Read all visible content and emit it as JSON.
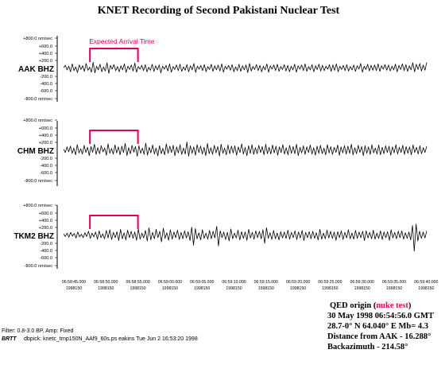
{
  "chart_data": {
    "type": "line",
    "title": "KNET Recording of Second Pakistani Nuclear Test",
    "annotation": "Expected Arrival Time",
    "y_ticks": [
      "+800.0 nm/sec",
      "+600.0",
      "+400.0",
      "+200.0",
      "0",
      "-200.0",
      "-400.0",
      "-600.0",
      "-800.0 nm/sec"
    ],
    "y_units": "nm/sec",
    "ylim": [
      -800,
      800
    ],
    "x_ticks": [
      {
        "time": "06:58:45.000",
        "date": "1998150"
      },
      {
        "time": "06:58:50.000",
        "date": "1998150"
      },
      {
        "time": "06:58:55.000",
        "date": "1998150"
      },
      {
        "time": "06:59:00.000",
        "date": "1998150"
      },
      {
        "time": "06:59:05.000",
        "date": "1998150"
      },
      {
        "time": "06:59:10.000",
        "date": "1998150"
      },
      {
        "time": "06:59:15.000",
        "date": "1998150"
      },
      {
        "time": "06:59:20.000",
        "date": "1998150"
      },
      {
        "time": "06:59:25.000",
        "date": "1998150"
      },
      {
        "time": "06:59:30.000",
        "date": "1998150"
      },
      {
        "time": "06:59:35.000",
        "date": "1998150"
      },
      {
        "time": "06:59:40.000",
        "date": "1998150"
      }
    ],
    "expected_arrival_window": [
      "06:58:47.5",
      "06:58:55.0"
    ],
    "series": [
      {
        "name": "AAK BHZ",
        "values": [
          20,
          80,
          -40,
          60,
          -90,
          120,
          -60,
          40,
          -110,
          90,
          -30,
          70,
          -80,
          130,
          -50,
          30,
          -100,
          160,
          -120,
          60,
          -40,
          110,
          -90,
          40,
          -70,
          150,
          -130,
          80,
          -20,
          100,
          -60,
          50,
          -90,
          70,
          -40,
          120,
          -110,
          60,
          -30,
          90,
          -70,
          140,
          -100,
          50,
          -20,
          80,
          -60,
          100,
          -90,
          30,
          -50,
          110,
          -80,
          70,
          -40,
          90,
          -120,
          60,
          -20,
          80,
          -70,
          120,
          -100,
          50,
          -30,
          90,
          -60,
          110,
          -80,
          40,
          -50,
          100,
          -90,
          70,
          -40,
          130,
          -110,
          60,
          -20,
          80,
          -60,
          100,
          -90,
          50,
          -30,
          110,
          -80,
          70,
          -40,
          90,
          -70,
          120,
          -100,
          60,
          -20,
          80,
          -50,
          100,
          -90,
          40,
          -60,
          110,
          -80,
          70,
          -40,
          90,
          -110,
          130,
          -70,
          50,
          -30,
          100,
          -60,
          80,
          -90,
          60,
          -40,
          120,
          -100,
          70,
          -20,
          90,
          -60,
          110,
          -80,
          50,
          -30,
          100,
          -70,
          80,
          -90,
          60,
          -40,
          110,
          -100,
          70,
          -20,
          90,
          -60,
          120,
          -80,
          50,
          -40,
          100,
          -90,
          70,
          -30,
          110,
          -70,
          80,
          -60,
          60,
          -20,
          100,
          -80,
          90,
          -50,
          120,
          -90,
          60,
          -30,
          80,
          -60,
          100,
          -70,
          50,
          -40,
          90,
          -80,
          70,
          -20,
          130,
          -100,
          60,
          -30,
          110,
          -70,
          80,
          -50,
          90,
          -60,
          120,
          -80,
          70,
          -20,
          100,
          -50,
          90,
          -70,
          60,
          -40,
          110,
          -90,
          80,
          -30,
          120,
          -60,
          100,
          -80,
          70,
          -40,
          150,
          -90,
          110,
          -30,
          130,
          -70,
          90,
          -50,
          160
        ]
      },
      {
        "name": "CHM BHZ",
        "values": [
          30,
          -60,
          90,
          -40,
          110,
          -80,
          60,
          -120,
          150,
          -70,
          40,
          -100,
          130,
          -60,
          80,
          -140,
          100,
          -50,
          160,
          -110,
          70,
          -90,
          120,
          -40,
          60,
          -130,
          170,
          -80,
          50,
          -100,
          140,
          -70,
          90,
          -120,
          110,
          -60,
          180,
          -140,
          70,
          -90,
          130,
          -50,
          100,
          -160,
          120,
          -80,
          60,
          -110,
          190,
          -130,
          80,
          -70,
          140,
          -100,
          60,
          -150,
          120,
          -90,
          50,
          -120,
          170,
          -80,
          110,
          -60,
          130,
          -140,
          90,
          -70,
          150,
          -110,
          60,
          -100,
          220,
          -160,
          120,
          -80,
          90,
          -130,
          150,
          -60,
          110,
          -100,
          80,
          -140,
          180,
          -90,
          70,
          -110,
          130,
          -70,
          100,
          -150,
          160,
          -80,
          60,
          -120,
          140,
          -90,
          110,
          -70,
          120,
          -130,
          90,
          -60,
          170,
          -100,
          80,
          -140,
          120,
          -80,
          150,
          -110,
          70,
          -90,
          130,
          -60,
          100,
          -120,
          160,
          -90,
          80,
          -100,
          140,
          -70,
          110,
          -130,
          90,
          -60,
          150,
          -100,
          70,
          -120,
          130,
          -80,
          100,
          -90,
          160,
          -140,
          80,
          -70,
          120,
          -110,
          90,
          -60,
          140,
          -100,
          70,
          -130,
          110,
          -80,
          130,
          -90,
          60,
          -120,
          150,
          -70,
          100,
          -110,
          80,
          -60,
          140,
          -130,
          90,
          -70,
          120,
          -100,
          110,
          -80,
          160,
          -120,
          70,
          -90,
          130,
          -60,
          100,
          -140,
          120,
          -80,
          90,
          -110,
          150,
          -70,
          60,
          -100,
          140,
          -120,
          80,
          -90,
          120,
          -60,
          110,
          -130,
          90,
          -70,
          150,
          -100,
          80,
          -60,
          130,
          -110,
          100,
          -80,
          90,
          -120,
          140,
          -60,
          80,
          -100,
          120,
          -90,
          70,
          -60,
          110
        ]
      },
      {
        "name": "TKM2 BHZ",
        "values": [
          40,
          -30,
          60,
          -50,
          80,
          -20,
          50,
          -70,
          90,
          -40,
          30,
          -60,
          70,
          -30,
          110,
          -80,
          60,
          -40,
          90,
          -100,
          120,
          -60,
          40,
          -90,
          130,
          -70,
          150,
          -110,
          80,
          -60,
          100,
          -140,
          160,
          -90,
          70,
          -120,
          140,
          -60,
          110,
          -80,
          90,
          -130,
          170,
          -100,
          60,
          -70,
          130,
          -150,
          200,
          -120,
          80,
          -90,
          160,
          -60,
          110,
          -170,
          190,
          -80,
          70,
          -130,
          150,
          -100,
          90,
          -60,
          140,
          -110,
          80,
          -90,
          120,
          -70,
          100,
          -140,
          220,
          -260,
          180,
          -90,
          70,
          -120,
          150,
          -80,
          60,
          -100,
          130,
          -90,
          110,
          -70,
          240,
          -280,
          120,
          -60,
          90,
          -110,
          80,
          -150,
          170,
          -90,
          60,
          -70,
          140,
          -120,
          100,
          -80,
          90,
          -130,
          160,
          -70,
          80,
          -100,
          120,
          -60,
          110,
          -90,
          150,
          -210,
          200,
          -80,
          70,
          -110,
          130,
          -90,
          60,
          -120,
          100,
          -70,
          90,
          -80,
          140,
          -100,
          80,
          -60,
          120,
          -110,
          90,
          -70,
          130,
          -140,
          80,
          -60,
          100,
          -90,
          110,
          -80,
          70,
          -120,
          160,
          -100,
          60,
          -90,
          140,
          -70,
          110,
          -80,
          90,
          -130,
          100,
          -60,
          120,
          -110,
          80,
          -70,
          150,
          -90,
          60,
          -100,
          130,
          -80,
          90,
          -60,
          110,
          -140,
          120,
          -70,
          80,
          -90,
          140,
          -100,
          60,
          -80,
          120,
          -110,
          90,
          -60,
          100,
          -130,
          150,
          -70,
          80,
          -90,
          110,
          -60,
          120,
          -100,
          70,
          -80,
          90,
          -120,
          260,
          -420,
          300,
          -150,
          110,
          -80,
          90,
          -70,
          120
        ]
      }
    ]
  },
  "footer": {
    "filter": "Filter: 0.8-3.0 BP, Amp: Fixed",
    "brtt": "BRTT",
    "command": "dbpick: knetc_trnp150N_AAf9_60s.ps eakins Tue Jun  2 16:53:20 1998"
  },
  "origin": {
    "label": "QED origin (",
    "nuke": "nuke test",
    "close": ")",
    "datetime": "30 May 1998  06:54:56.0 GMT",
    "location": "28.7-0° N  64.040° E Mb= 4.3",
    "distance": "Distance from AAK - 16.288°",
    "backazimuth": "Backazimuth - 214.58°"
  }
}
